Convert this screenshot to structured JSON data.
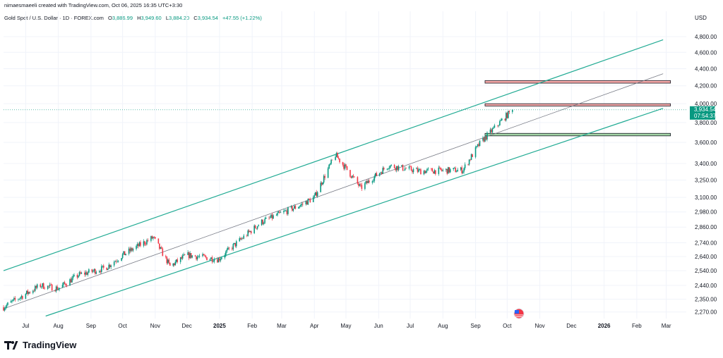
{
  "header": {
    "created_by": "nimaesmaeeli created with TradingView.com, Oct 06, 2025 16:35 UTC+3:30"
  },
  "legend": {
    "symbol": "Gold Spot / U.S. Dollar · 1D · FOREX.com",
    "open_label": "O",
    "open": "3,886.99",
    "high_label": "H",
    "high": "3,949.60",
    "low_label": "L",
    "low": "3,884.20",
    "close_label": "C",
    "close": "3,934.54",
    "change": "+47.55 (+1.22%)"
  },
  "price_scale": {
    "currency": "USD",
    "ticks": [
      "4,800.00",
      "4,600.00",
      "4,400.00",
      "4,200.00",
      "4,000.00",
      "3,800.00",
      "3,600.00",
      "3,400.00",
      "3,250.00",
      "3,100.00",
      "2,980.00",
      "2,860.00",
      "2,740.00",
      "2,640.00",
      "2,540.00",
      "2,440.00",
      "2,350.00",
      "2,270.00"
    ],
    "last_price": "3,934.54",
    "countdown": "07:54:37"
  },
  "time_scale": {
    "labels": [
      "Jul",
      "Aug",
      "Sep",
      "Oct",
      "Nov",
      "Dec",
      "2025",
      "Feb",
      "Mar",
      "Apr",
      "May",
      "Jun",
      "Jul",
      "Aug",
      "Sep",
      "Oct",
      "Nov",
      "Dec",
      "2026",
      "Feb",
      "Mar"
    ]
  },
  "branding": {
    "logo_text": "TradingView"
  },
  "colors": {
    "up": "#089981",
    "down": "#f23645",
    "channel": "#22ab94",
    "zone_red": "#f7a9a9",
    "zone_green": "#a5d6a7"
  },
  "chart_data": {
    "type": "candlestick",
    "title": "Gold Spot / U.S. Dollar · 1D · FOREX.com",
    "ylabel": "USD",
    "scale": "log",
    "ylim": [
      2230,
      4950
    ],
    "x_range": [
      "2024-06-10",
      "2026-03-20"
    ],
    "approx_closes": [
      {
        "date": "2024-06-10",
        "close": 2300
      },
      {
        "date": "2024-07-15",
        "close": 2440
      },
      {
        "date": "2024-08-01",
        "close": 2420
      },
      {
        "date": "2024-08-20",
        "close": 2510
      },
      {
        "date": "2024-09-15",
        "close": 2560
      },
      {
        "date": "2024-10-01",
        "close": 2650
      },
      {
        "date": "2024-10-30",
        "close": 2780
      },
      {
        "date": "2024-11-15",
        "close": 2570
      },
      {
        "date": "2024-12-01",
        "close": 2650
      },
      {
        "date": "2024-12-31",
        "close": 2620
      },
      {
        "date": "2025-02-10",
        "close": 2900
      },
      {
        "date": "2025-03-20",
        "close": 3040
      },
      {
        "date": "2025-04-01",
        "close": 3100
      },
      {
        "date": "2025-04-21",
        "close": 3480
      },
      {
        "date": "2025-05-15",
        "close": 3180
      },
      {
        "date": "2025-06-10",
        "close": 3380
      },
      {
        "date": "2025-07-10",
        "close": 3330
      },
      {
        "date": "2025-08-20",
        "close": 3340
      },
      {
        "date": "2025-09-05",
        "close": 3590
      },
      {
        "date": "2025-10-06",
        "close": 3934.54
      }
    ],
    "channel": {
      "upper": [
        {
          "date": "2024-06-10",
          "price": 2540
        },
        {
          "date": "2026-02-26",
          "price": 4760
        }
      ],
      "mid": [
        {
          "date": "2024-06-10",
          "price": 2290
        },
        {
          "date": "2026-02-26",
          "price": 4340
        }
      ],
      "lower": [
        {
          "date": "2024-07-20",
          "price": 2245
        },
        {
          "date": "2026-02-26",
          "price": 3950
        }
      ]
    },
    "zones": [
      {
        "kind": "resistance",
        "from": "2025-09-10",
        "to": "2026-03-05",
        "low": 4230,
        "high": 4260
      },
      {
        "kind": "resistance",
        "from": "2025-09-10",
        "to": "2026-03-05",
        "low": 3975,
        "high": 4000
      },
      {
        "kind": "support",
        "from": "2025-09-10",
        "to": "2026-03-05",
        "low": 3665,
        "high": 3690
      }
    ]
  }
}
